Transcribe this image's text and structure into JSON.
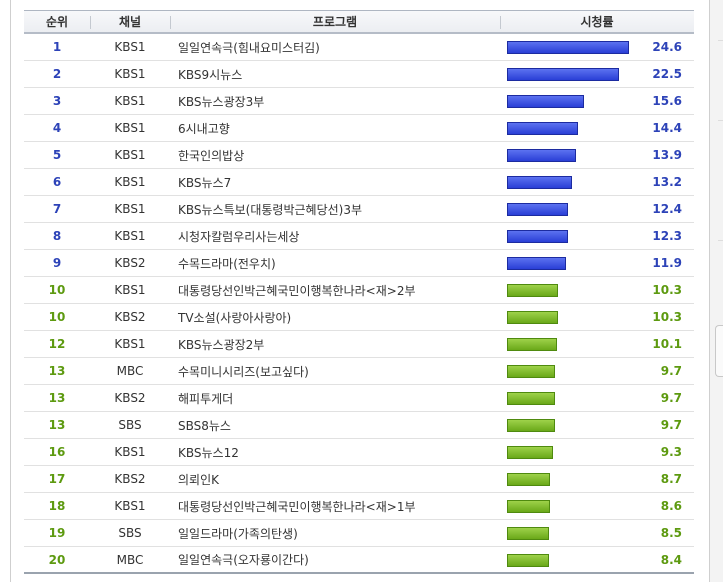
{
  "headers": {
    "rank": "순위",
    "channel": "채널",
    "program": "프로그램",
    "rating": "시청률"
  },
  "colors": {
    "blue_bar": "#2a3fd6",
    "blue_bar_light": "#5c72f0",
    "green_bar": "#6aa819",
    "green_bar_light": "#9ed24a",
    "blue_text": "#2d43b8",
    "green_text": "#5d9a10"
  },
  "chart_data": {
    "type": "table",
    "columns": [
      "순위",
      "채널",
      "프로그램",
      "시청률"
    ],
    "max_rating": 24.6,
    "rows": [
      {
        "rank": "1",
        "channel": "KBS1",
        "program": "일일연속극(힘내요미스터김)",
        "rating": 24.6,
        "rating_label": "24.6",
        "tier": "top"
      },
      {
        "rank": "2",
        "channel": "KBS1",
        "program": "KBS9시뉴스",
        "rating": 22.5,
        "rating_label": "22.5",
        "tier": "top"
      },
      {
        "rank": "3",
        "channel": "KBS1",
        "program": "KBS뉴스광장3부",
        "rating": 15.6,
        "rating_label": "15.6",
        "tier": "top"
      },
      {
        "rank": "4",
        "channel": "KBS1",
        "program": "6시내고향",
        "rating": 14.4,
        "rating_label": "14.4",
        "tier": "top"
      },
      {
        "rank": "5",
        "channel": "KBS1",
        "program": "한국인의밥상",
        "rating": 13.9,
        "rating_label": "13.9",
        "tier": "top"
      },
      {
        "rank": "6",
        "channel": "KBS1",
        "program": "KBS뉴스7",
        "rating": 13.2,
        "rating_label": "13.2",
        "tier": "top"
      },
      {
        "rank": "7",
        "channel": "KBS1",
        "program": "KBS뉴스특보(대통령박근혜당선)3부",
        "rating": 12.4,
        "rating_label": "12.4",
        "tier": "top"
      },
      {
        "rank": "8",
        "channel": "KBS1",
        "program": "시청자칼럼우리사는세상",
        "rating": 12.3,
        "rating_label": "12.3",
        "tier": "top"
      },
      {
        "rank": "9",
        "channel": "KBS2",
        "program": "수목드라마(전우치)",
        "rating": 11.9,
        "rating_label": "11.9",
        "tier": "top"
      },
      {
        "rank": "10",
        "channel": "KBS1",
        "program": "대통령당선인박근혜국민이행복한나라<재>2부",
        "rating": 10.3,
        "rating_label": "10.3",
        "tier": "rest"
      },
      {
        "rank": "10",
        "channel": "KBS2",
        "program": "TV소설(사랑아사랑아)",
        "rating": 10.3,
        "rating_label": "10.3",
        "tier": "rest"
      },
      {
        "rank": "12",
        "channel": "KBS1",
        "program": "KBS뉴스광장2부",
        "rating": 10.1,
        "rating_label": "10.1",
        "tier": "rest"
      },
      {
        "rank": "13",
        "channel": "MBC",
        "program": "수목미니시리즈(보고싶다)",
        "rating": 9.7,
        "rating_label": "9.7",
        "tier": "rest"
      },
      {
        "rank": "13",
        "channel": "KBS2",
        "program": "해피투게더",
        "rating": 9.7,
        "rating_label": "9.7",
        "tier": "rest"
      },
      {
        "rank": "13",
        "channel": "SBS",
        "program": "SBS8뉴스",
        "rating": 9.7,
        "rating_label": "9.7",
        "tier": "rest"
      },
      {
        "rank": "16",
        "channel": "KBS1",
        "program": "KBS뉴스12",
        "rating": 9.3,
        "rating_label": "9.3",
        "tier": "rest"
      },
      {
        "rank": "17",
        "channel": "KBS2",
        "program": "의뢰인K",
        "rating": 8.7,
        "rating_label": "8.7",
        "tier": "rest"
      },
      {
        "rank": "18",
        "channel": "KBS1",
        "program": "대통령당선인박근혜국민이행복한나라<재>1부",
        "rating": 8.6,
        "rating_label": "8.6",
        "tier": "rest"
      },
      {
        "rank": "19",
        "channel": "SBS",
        "program": "일일드라마(가족의탄생)",
        "rating": 8.5,
        "rating_label": "8.5",
        "tier": "rest"
      },
      {
        "rank": "20",
        "channel": "MBC",
        "program": "일일연속극(오자룡이간다)",
        "rating": 8.4,
        "rating_label": "8.4",
        "tier": "rest"
      }
    ]
  }
}
